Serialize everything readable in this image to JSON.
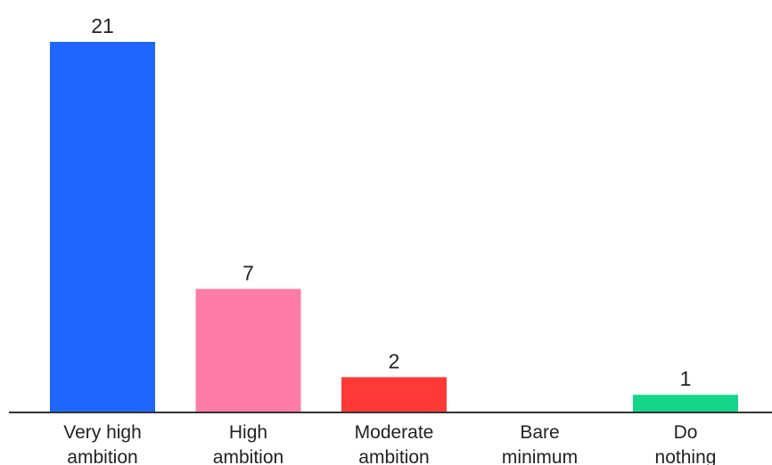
{
  "chart_data": {
    "type": "bar",
    "title": "",
    "xlabel": "",
    "ylabel": "",
    "categories": [
      [
        "Very high",
        "ambition"
      ],
      [
        "High",
        "ambition"
      ],
      [
        "Moderate",
        "ambition"
      ],
      [
        "Bare",
        "minimum"
      ],
      [
        "Do",
        "nothing"
      ]
    ],
    "values": [
      21,
      7,
      2,
      0,
      1
    ],
    "data_labels": [
      "21",
      "7",
      "2",
      "",
      "1"
    ],
    "colors": [
      "#1f66ff",
      "#ff7ca8",
      "#ff3a36",
      "#ffffff",
      "#14d68b"
    ],
    "ylim": [
      0,
      21
    ],
    "grid": false,
    "legend": "none"
  }
}
